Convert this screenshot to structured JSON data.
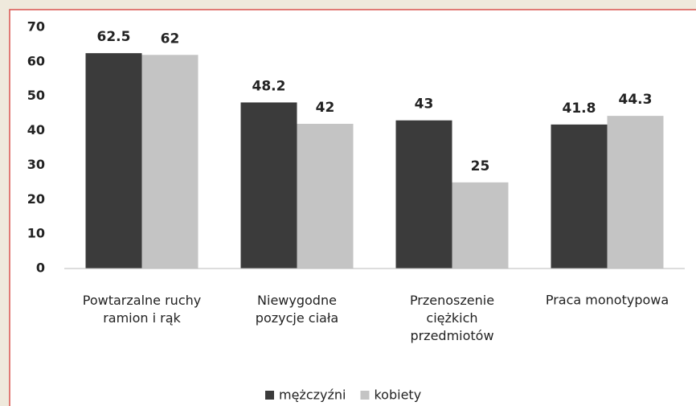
{
  "chart_data": {
    "type": "bar",
    "categories": [
      "Powtarzalne ruchy\nramion i rąk",
      "Niewygodne\npozycje ciała",
      "Przenoszenie\nciężkich\nprzedmiotów",
      "Praca monotypowa"
    ],
    "series": [
      {
        "name": "mężczyźni",
        "color": "#3b3b3b",
        "values": [
          62.5,
          48.2,
          43,
          41.8
        ]
      },
      {
        "name": "kobiety",
        "color": "#c4c4c4",
        "values": [
          62,
          42,
          25,
          44.3
        ]
      }
    ],
    "ylim": [
      0,
      70
    ],
    "yticks": [
      0,
      10,
      20,
      30,
      40,
      50,
      60,
      70
    ],
    "grid": false,
    "legend": "bottom"
  }
}
